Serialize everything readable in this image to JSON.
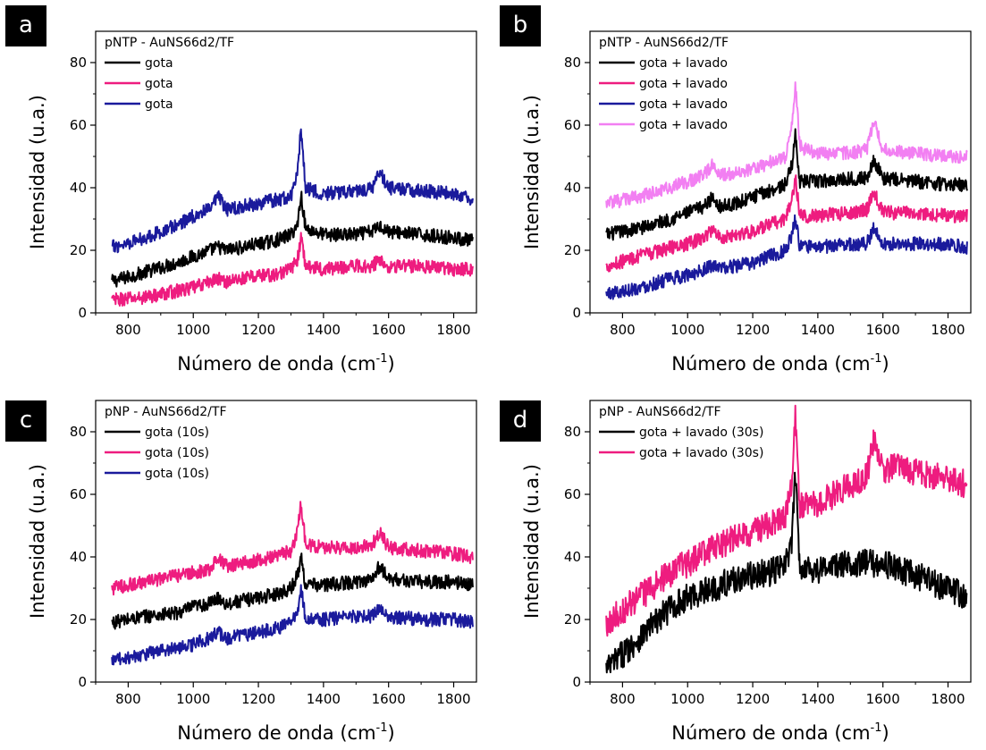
{
  "chart_data": [
    {
      "type": "line",
      "panel_label": "a",
      "annotation": "pNTP - AuNS66d2/TF",
      "xlabel": "Número de onda (cm",
      "xlabel_sup": "-1",
      "xlabel_end": ")",
      "ylabel": "Intensidad (u.a.)",
      "xlim": [
        700,
        1870
      ],
      "ylim": [
        0,
        90
      ],
      "xticks": [
        800,
        1000,
        1200,
        1400,
        1600,
        1800
      ],
      "yticks": [
        0,
        20,
        40,
        60,
        80
      ],
      "grid": false,
      "legend_position": "top-left",
      "series": [
        {
          "name": "gota",
          "color": "#000000",
          "x": [
            750,
            850,
            950,
            1000,
            1050,
            1078,
            1100,
            1150,
            1200,
            1250,
            1300,
            1320,
            1331,
            1345,
            1400,
            1500,
            1550,
            1572,
            1600,
            1700,
            1800,
            1860
          ],
          "y": [
            10,
            13,
            16,
            18,
            20,
            21,
            20,
            21,
            22,
            23,
            25,
            28,
            38,
            27,
            25,
            25,
            26,
            28,
            26,
            25,
            24,
            23
          ]
        },
        {
          "name": "gota",
          "color": "#ee1c7f",
          "x": [
            750,
            850,
            950,
            1000,
            1050,
            1078,
            1100,
            1150,
            1200,
            1250,
            1300,
            1320,
            1331,
            1345,
            1400,
            1500,
            1550,
            1572,
            1600,
            1700,
            1800,
            1860
          ],
          "y": [
            4,
            5,
            7,
            8,
            10,
            11,
            10,
            11,
            12,
            12,
            14,
            17,
            24,
            15,
            14,
            15,
            15,
            17,
            15,
            15,
            14,
            14
          ]
        },
        {
          "name": "gota",
          "color": "#1a1a9c",
          "x": [
            750,
            850,
            950,
            1000,
            1050,
            1078,
            1100,
            1150,
            1200,
            1250,
            1300,
            1320,
            1331,
            1345,
            1400,
            1500,
            1550,
            1572,
            1600,
            1700,
            1800,
            1860
          ],
          "y": [
            21,
            24,
            28,
            31,
            33,
            37,
            33,
            34,
            35,
            36,
            37,
            45,
            59,
            40,
            38,
            39,
            40,
            45,
            40,
            39,
            38,
            36
          ]
        }
      ]
    },
    {
      "type": "line",
      "panel_label": "b",
      "annotation": "pNTP - AuNS66d2/TF",
      "xlabel": "Número de onda (cm",
      "xlabel_sup": "-1",
      "xlabel_end": ")",
      "ylabel": "Intensidad (u.a.)",
      "xlim": [
        700,
        1870
      ],
      "ylim": [
        0,
        90
      ],
      "xticks": [
        800,
        1000,
        1200,
        1400,
        1600,
        1800
      ],
      "yticks": [
        0,
        20,
        40,
        60,
        80
      ],
      "grid": false,
      "legend_position": "top-left",
      "series": [
        {
          "name": "gota + lavado",
          "color": "#000000",
          "x": [
            750,
            850,
            950,
            1000,
            1050,
            1078,
            1100,
            1150,
            1200,
            1250,
            1300,
            1320,
            1331,
            1345,
            1400,
            1500,
            1550,
            1572,
            1600,
            1700,
            1800,
            1860
          ],
          "y": [
            25,
            27,
            30,
            32,
            34,
            37,
            34,
            35,
            37,
            39,
            41,
            47,
            57,
            42,
            42,
            43,
            43,
            49,
            43,
            42,
            41,
            41
          ]
        },
        {
          "name": "gota + lavado",
          "color": "#ee1c7f",
          "x": [
            750,
            850,
            950,
            1000,
            1050,
            1078,
            1100,
            1150,
            1200,
            1250,
            1300,
            1320,
            1331,
            1345,
            1400,
            1500,
            1550,
            1572,
            1600,
            1700,
            1800,
            1860
          ],
          "y": [
            15,
            18,
            21,
            22,
            24,
            27,
            24,
            25,
            26,
            28,
            30,
            36,
            43,
            31,
            31,
            32,
            33,
            39,
            32,
            32,
            31,
            31
          ]
        },
        {
          "name": "gota + lavado",
          "color": "#1a1a9c",
          "x": [
            750,
            850,
            950,
            1000,
            1050,
            1078,
            1100,
            1150,
            1200,
            1250,
            1300,
            1320,
            1331,
            1345,
            1400,
            1500,
            1550,
            1572,
            1600,
            1700,
            1800,
            1860
          ],
          "y": [
            6,
            8,
            11,
            12,
            14,
            15,
            14,
            15,
            16,
            18,
            20,
            25,
            30,
            21,
            21,
            22,
            22,
            27,
            22,
            22,
            22,
            21
          ]
        },
        {
          "name": "gota + lavado",
          "color": "#f27ff2",
          "x": [
            750,
            850,
            950,
            1000,
            1050,
            1078,
            1100,
            1150,
            1200,
            1250,
            1300,
            1320,
            1331,
            1345,
            1400,
            1500,
            1550,
            1572,
            1600,
            1700,
            1800,
            1860
          ],
          "y": [
            35,
            37,
            40,
            42,
            44,
            48,
            44,
            45,
            46,
            48,
            50,
            59,
            73,
            53,
            51,
            51,
            52,
            61,
            52,
            51,
            50,
            50
          ]
        }
      ]
    },
    {
      "type": "line",
      "panel_label": "c",
      "annotation": "pNP - AuNS66d2/TF",
      "xlabel": "Número de onda (cm",
      "xlabel_sup": "-1",
      "xlabel_end": ")",
      "ylabel": "Intensidad (u.a.)",
      "xlim": [
        700,
        1870
      ],
      "ylim": [
        0,
        90
      ],
      "xticks": [
        800,
        1000,
        1200,
        1400,
        1600,
        1800
      ],
      "yticks": [
        0,
        20,
        40,
        60,
        80
      ],
      "grid": false,
      "legend_position": "top-left",
      "series": [
        {
          "name": "gota (10s)",
          "color": "#000000",
          "x": [
            750,
            850,
            950,
            1000,
            1050,
            1078,
            1100,
            1150,
            1200,
            1250,
            1300,
            1320,
            1331,
            1345,
            1400,
            1500,
            1550,
            1572,
            1600,
            1700,
            1800,
            1860
          ],
          "y": [
            19,
            21,
            22,
            24,
            25,
            27,
            25,
            26,
            27,
            28,
            30,
            34,
            40,
            31,
            31,
            32,
            33,
            37,
            33,
            32,
            32,
            31
          ]
        },
        {
          "name": "gota (10s)",
          "color": "#ee1c7f",
          "x": [
            750,
            850,
            950,
            1000,
            1050,
            1078,
            1100,
            1150,
            1200,
            1250,
            1300,
            1320,
            1331,
            1345,
            1400,
            1500,
            1550,
            1572,
            1600,
            1700,
            1800,
            1860
          ],
          "y": [
            30,
            32,
            34,
            35,
            36,
            40,
            37,
            38,
            39,
            40,
            42,
            48,
            57,
            44,
            43,
            43,
            44,
            48,
            43,
            42,
            41,
            40
          ]
        },
        {
          "name": "gota (10s)",
          "color": "#1a1a9c",
          "x": [
            750,
            850,
            950,
            1000,
            1050,
            1078,
            1100,
            1150,
            1200,
            1250,
            1300,
            1320,
            1331,
            1345,
            1400,
            1500,
            1550,
            1572,
            1600,
            1700,
            1800,
            1860
          ],
          "y": [
            7,
            9,
            11,
            12,
            14,
            16,
            14,
            15,
            16,
            17,
            19,
            23,
            30,
            20,
            20,
            21,
            21,
            24,
            21,
            20,
            20,
            19
          ]
        }
      ]
    },
    {
      "type": "line",
      "panel_label": "d",
      "annotation": "pNP - AuNS66d2/TF",
      "xlabel": "Número de onda (cm",
      "xlabel_sup": "-1",
      "xlabel_end": ")",
      "ylabel": "Intensidad (u.a.)",
      "xlim": [
        700,
        1870
      ],
      "ylim": [
        0,
        90
      ],
      "xticks": [
        800,
        1000,
        1200,
        1400,
        1600,
        1800
      ],
      "yticks": [
        0,
        20,
        40,
        60,
        80
      ],
      "grid": false,
      "legend_position": "top-left",
      "series": [
        {
          "name": "gota + lavado (30s)",
          "color": "#000000",
          "x": [
            750,
            800,
            850,
            900,
            950,
            1000,
            1050,
            1100,
            1150,
            1200,
            1250,
            1300,
            1320,
            1331,
            1345,
            1400,
            1450,
            1500,
            1550,
            1600,
            1650,
            1700,
            1750,
            1800,
            1860
          ],
          "y": [
            4,
            9,
            14,
            19,
            24,
            27,
            29,
            31,
            33,
            34,
            35,
            37,
            45,
            66,
            37,
            36,
            37,
            38,
            38,
            38,
            36,
            34,
            32,
            30,
            27
          ]
        },
        {
          "name": "gota + lavado (30s)",
          "color": "#ee1c7f",
          "x": [
            750,
            800,
            850,
            900,
            950,
            1000,
            1050,
            1100,
            1150,
            1200,
            1250,
            1300,
            1320,
            1331,
            1345,
            1400,
            1450,
            1500,
            1550,
            1572,
            1600,
            1650,
            1700,
            1750,
            1800,
            1860
          ],
          "y": [
            19,
            23,
            27,
            31,
            35,
            38,
            41,
            44,
            46,
            48,
            50,
            52,
            63,
            86,
            56,
            57,
            60,
            63,
            66,
            78,
            68,
            69,
            67,
            66,
            65,
            63
          ]
        }
      ]
    }
  ]
}
